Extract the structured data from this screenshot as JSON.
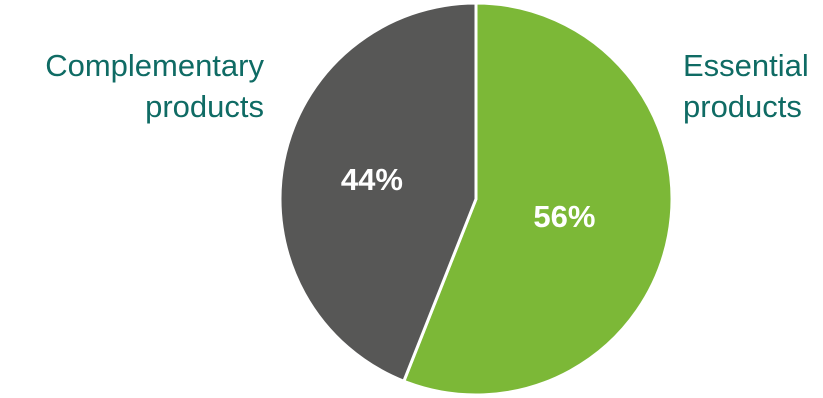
{
  "chart_data": {
    "type": "pie",
    "title": "",
    "categories": [
      "Essential products",
      "Complementary products"
    ],
    "values": [
      56,
      44
    ],
    "value_labels": [
      "56%",
      "44%"
    ],
    "category_label_lines": [
      [
        "Essential",
        "products"
      ],
      [
        "Complementary",
        "products"
      ]
    ],
    "colors": [
      "#7cb837",
      "#575756"
    ],
    "label_color": "#0f6b64",
    "value_label_color": "#ffffff",
    "start_angle_deg": 0,
    "direction": "clockwise",
    "legend": "none"
  }
}
